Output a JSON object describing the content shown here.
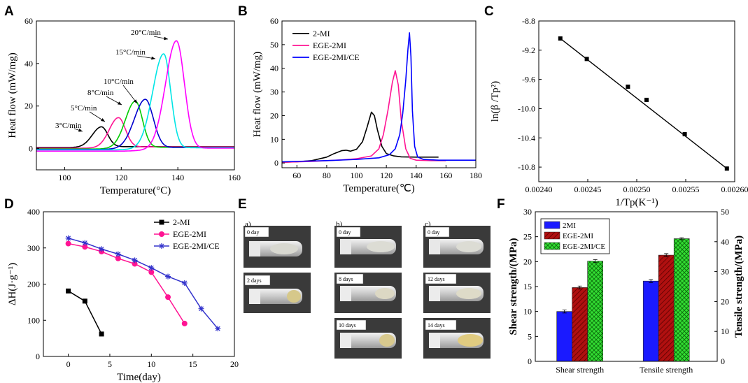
{
  "figure": {
    "panel_labels": [
      "A",
      "B",
      "C",
      "D",
      "E",
      "F"
    ]
  },
  "chart_data": [
    {
      "panel": "A",
      "type": "line",
      "xlabel": "Temperature(°C)",
      "ylabel": "Heat flow (mW/mg)",
      "xlim": [
        90,
        160
      ],
      "ylim": [
        -10,
        60
      ],
      "xticks": [
        100,
        120,
        140,
        160
      ],
      "yticks": [
        0,
        20,
        40,
        60
      ],
      "annotations": [
        "3°C/min",
        "5°C/min",
        "8°C/min",
        "10°C/min",
        "15°C/min",
        "20°C/min"
      ],
      "series": [
        {
          "name": "3°C/min",
          "color": "#000000",
          "peak_x": 113,
          "peak_y": 9.5,
          "width_left": 5,
          "width_right": 3.2,
          "onset": 103,
          "offset": 120,
          "base_before": 0.5,
          "base_after": 0.9
        },
        {
          "name": "5°C/min",
          "color": "#ff1493",
          "peak_x": 119,
          "peak_y": 14,
          "width_left": 5,
          "width_right": 3.5,
          "onset": 108,
          "offset": 127,
          "base_before": 0.2,
          "base_after": 0.8
        },
        {
          "name": "8°C/min",
          "color": "#00cc00",
          "peak_x": 125,
          "peak_y": 22,
          "width_left": 5.5,
          "width_right": 3.5,
          "onset": 112,
          "offset": 133,
          "base_before": -0.2,
          "base_after": 0.6
        },
        {
          "name": "10°C/min",
          "color": "#0000cd",
          "peak_x": 128.5,
          "peak_y": 23,
          "width_left": 6,
          "width_right": 4,
          "onset": 113,
          "offset": 138,
          "base_before": -0.4,
          "base_after": 0.5
        },
        {
          "name": "15°C/min",
          "color": "#00e5e5",
          "peak_x": 135,
          "peak_y": 44.5,
          "width_left": 6,
          "width_right": 3.5,
          "onset": 118,
          "offset": 144,
          "base_before": -0.6,
          "base_after": 0.4
        },
        {
          "name": "20°C/min",
          "color": "#ff00ff",
          "peak_x": 139.5,
          "peak_y": 51,
          "width_left": 6,
          "width_right": 4,
          "onset": 121,
          "offset": 150,
          "base_before": -1.2,
          "base_after": 0.2
        }
      ]
    },
    {
      "panel": "B",
      "type": "line",
      "xlabel": "Temperature(℃)",
      "ylabel": "Heat flow  (mW/mg)",
      "xlim": [
        50,
        180
      ],
      "ylim": [
        -2,
        60
      ],
      "xticks": [
        60,
        80,
        100,
        120,
        140,
        160,
        180
      ],
      "yticks": [
        0,
        10,
        20,
        30,
        40,
        50,
        60
      ],
      "legend": [
        "2-MI",
        "EGE-2MI",
        "EGE-2MI/CE"
      ],
      "series": [
        {
          "name": "2-MI",
          "color": "#000000",
          "x": [
            50,
            60,
            70,
            80,
            85,
            90,
            93,
            96,
            100,
            104,
            107,
            110,
            112,
            114,
            117,
            120,
            125,
            130,
            140,
            150,
            155
          ],
          "y": [
            0.3,
            0.5,
            1,
            2.5,
            4,
            5.2,
            5.4,
            5,
            5.8,
            9,
            15,
            21.5,
            20,
            14,
            7,
            4,
            3,
            2.6,
            2.5,
            2.5,
            2.5
          ]
        },
        {
          "name": "EGE-2MI",
          "color": "#ff1493",
          "x": [
            50,
            70,
            90,
            100,
            110,
            115,
            118,
            121,
            124,
            126,
            128,
            130,
            133,
            136,
            140,
            150,
            160
          ],
          "y": [
            0.3,
            0.7,
            1.3,
            1.8,
            3,
            6,
            12,
            22,
            34,
            39,
            33,
            18,
            6,
            2,
            1.2,
            1,
            1
          ]
        },
        {
          "name": "EGE-2MI/CE",
          "color": "#0000ff",
          "x": [
            50,
            80,
            100,
            115,
            122,
            126,
            129,
            131,
            133,
            134.5,
            135.5,
            136.5,
            137.5,
            139,
            141,
            145,
            155,
            165,
            180
          ],
          "y": [
            0.5,
            1,
            1.5,
            2.2,
            3.5,
            6,
            12,
            21,
            35,
            48,
            55,
            45,
            22,
            7,
            2.5,
            1.5,
            1.2,
            1.2,
            1.2
          ]
        }
      ]
    },
    {
      "panel": "C",
      "type": "scatter",
      "xlabel": "1/Tp(K⁻¹)",
      "ylabel": "ln(β /Tp²)",
      "xlim": [
        0.0024,
        0.0026
      ],
      "ylim": [
        -11.0,
        -8.8
      ],
      "xticks": [
        "0.00240",
        "0.00245",
        "0.00250",
        "0.00255",
        "0.00260"
      ],
      "yticks": [
        "-8.8",
        "-9.2",
        "-9.6",
        "-10.0",
        "-10.4",
        "-10.8"
      ],
      "x": [
        0.002422,
        0.002449,
        0.002491,
        0.00251,
        0.002549,
        0.002592
      ],
      "y": [
        -9.04,
        -9.32,
        -9.7,
        -9.88,
        -10.35,
        -10.82
      ],
      "fit": {
        "x1": 0.002422,
        "y1": -9.04,
        "x2": 0.002592,
        "y2": -10.82
      }
    },
    {
      "panel": "D",
      "type": "line",
      "xlabel": "Time(day)",
      "ylabel": "ΔH(J·g⁻¹)",
      "xlim": [
        -3,
        20
      ],
      "ylim": [
        0,
        400
      ],
      "xticks": [
        0,
        5,
        10,
        15,
        20
      ],
      "yticks": [
        0,
        100,
        200,
        300,
        400
      ],
      "series": [
        {
          "name": "2-MI",
          "color": "#000000",
          "marker": "square",
          "x": [
            0,
            2,
            4
          ],
          "y": [
            181,
            153,
            62
          ]
        },
        {
          "name": "EGE-2MI",
          "color": "#ff1493",
          "marker": "circle",
          "x": [
            0,
            2,
            4,
            6,
            8,
            10,
            12,
            14
          ],
          "y": [
            312,
            303,
            290,
            271,
            256,
            233,
            164,
            91
          ]
        },
        {
          "name": "EGE-2MI/CE",
          "color": "#3333cc",
          "marker": "star",
          "x": [
            0,
            2,
            4,
            6,
            8,
            10,
            12,
            14,
            16,
            18
          ],
          "y": [
            327,
            314,
            297,
            283,
            266,
            245,
            221,
            203,
            132,
            77
          ]
        }
      ]
    },
    {
      "panel": "F",
      "type": "bar",
      "categories": [
        "Shear strength",
        "Tensile strength"
      ],
      "ylabel": "Shear strength/(MPa)",
      "y2label": "Tensile strength/(MPa)",
      "ylim": [
        0,
        30
      ],
      "y2lim": [
        0,
        50
      ],
      "yticks": [
        0,
        5,
        10,
        15,
        20,
        25,
        30
      ],
      "y2ticks": [
        0,
        10,
        20,
        30,
        40,
        50
      ],
      "series": [
        {
          "name": "2MI",
          "color": "#1a1aff",
          "values": [
            10.0,
            16.1
          ],
          "errors": [
            0.3,
            0.3
          ]
        },
        {
          "name": "EGE-2MI",
          "color": "#b01010",
          "values": [
            14.8,
            21.3
          ],
          "errors": [
            0.3,
            0.3
          ]
        },
        {
          "name": "EGE-2MI/CE",
          "color": "#22cc22",
          "values": [
            20.1,
            24.6
          ],
          "errors": [
            0.3,
            0.2
          ]
        }
      ]
    }
  ],
  "photos": {
    "columns": [
      {
        "label": "a)",
        "tags": [
          "0 day",
          "2 days"
        ]
      },
      {
        "label": "b)",
        "tags": [
          "0 day",
          "8 days",
          "10 days"
        ]
      },
      {
        "label": "c)",
        "tags": [
          "0 day",
          "12 days",
          "14 days"
        ]
      }
    ]
  }
}
